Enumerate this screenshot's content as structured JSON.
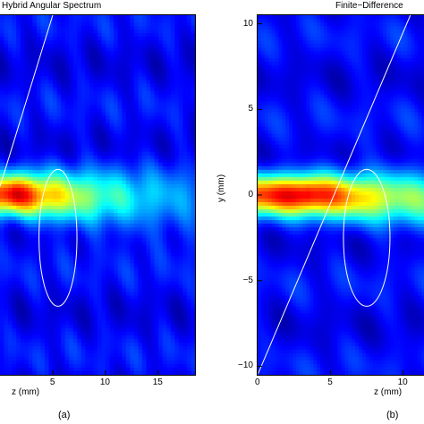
{
  "chart_data": [
    {
      "type": "heatmap",
      "title": "Hybrid Angular Spectrum",
      "panel_label": "(a)",
      "xlabel": "z (mm)",
      "ylabel": "",
      "xlim": [
        0,
        18.5
      ],
      "ylim": [
        -10.5,
        10.5
      ],
      "x_ticks": [
        5,
        10,
        15
      ],
      "y_ticks": [],
      "colormap": "jet",
      "beam": {
        "center_y": 0,
        "peak_z": 1.5,
        "width_mm": 1.2
      },
      "overlays": [
        {
          "name": "tilted-interface-line",
          "from": [
            0,
            0.5
          ],
          "to": [
            5,
            10.5
          ],
          "color": "#ffffff"
        },
        {
          "name": "ellipse-scatterer",
          "center": [
            5.5,
            -2.5
          ],
          "rx": 1.8,
          "ry": 4.0,
          "color": "#ffffff"
        }
      ]
    },
    {
      "type": "heatmap",
      "title": "Finite−Difference",
      "panel_label": "(b)",
      "xlabel": "z (mm)",
      "ylabel": "y (mm)",
      "xlim": [
        0,
        11.5
      ],
      "ylim": [
        -10.5,
        10.5
      ],
      "x_ticks": [
        0,
        5,
        10
      ],
      "y_ticks": [
        10,
        5,
        0,
        -5,
        -10
      ],
      "colormap": "jet",
      "beam": {
        "center_y": 0,
        "peak_z": 3.5,
        "width_mm": 1.2
      },
      "overlays": [
        {
          "name": "tilted-interface-line",
          "from": [
            0,
            -10.5
          ],
          "to": [
            10.5,
            10.5
          ],
          "color": "#ffffff"
        },
        {
          "name": "ellipse-scatterer",
          "center": [
            7.5,
            -2.5
          ],
          "rx": 1.6,
          "ry": 4.0,
          "color": "#ffffff"
        }
      ]
    }
  ]
}
